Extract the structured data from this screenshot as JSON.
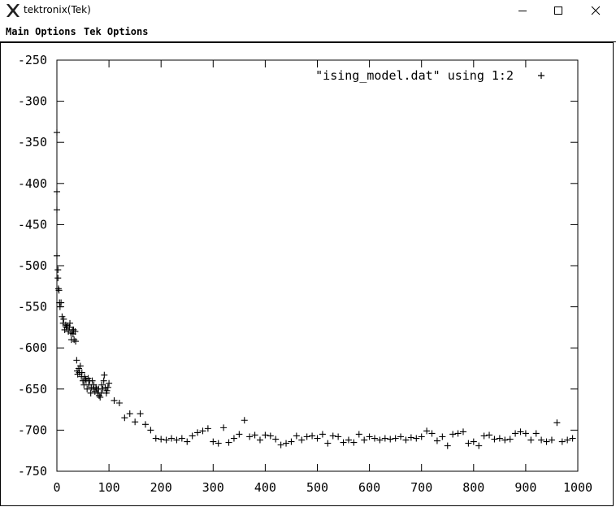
{
  "window": {
    "title": "tektronix(Tek)",
    "icon": "x-logo-icon",
    "controls": [
      "minimize-icon",
      "maximize-icon",
      "close-icon"
    ]
  },
  "menubar": {
    "main_options": "Main Options",
    "tek_options": "Tek Options"
  },
  "chart_data": {
    "type": "scatter",
    "marker": "+",
    "color": "#000000",
    "series": [
      {
        "name": "\"ising_model.dat\" using 1:2",
        "points": [
          [
            0,
            -338
          ],
          [
            0,
            -410
          ],
          [
            0,
            -432
          ],
          [
            0,
            -488
          ],
          [
            2,
            -505
          ],
          [
            2,
            -515
          ],
          [
            3,
            -528
          ],
          [
            4,
            -530
          ],
          [
            5,
            -545
          ],
          [
            6,
            -550
          ],
          [
            8,
            -545
          ],
          [
            10,
            -562
          ],
          [
            12,
            -570
          ],
          [
            13,
            -565
          ],
          [
            15,
            -578
          ],
          [
            17,
            -572
          ],
          [
            18,
            -575
          ],
          [
            20,
            -573
          ],
          [
            22,
            -580
          ],
          [
            24,
            -575
          ],
          [
            25,
            -570
          ],
          [
            27,
            -582
          ],
          [
            28,
            -590
          ],
          [
            30,
            -578
          ],
          [
            31,
            -583
          ],
          [
            32,
            -578
          ],
          [
            33,
            -590
          ],
          [
            35,
            -580
          ],
          [
            36,
            -592
          ],
          [
            38,
            -615
          ],
          [
            39,
            -628
          ],
          [
            40,
            -632
          ],
          [
            42,
            -625
          ],
          [
            43,
            -630
          ],
          [
            45,
            -622
          ],
          [
            47,
            -635
          ],
          [
            48,
            -630
          ],
          [
            50,
            -640
          ],
          [
            52,
            -645
          ],
          [
            53,
            -635
          ],
          [
            55,
            -638
          ],
          [
            56,
            -640
          ],
          [
            58,
            -650
          ],
          [
            60,
            -637
          ],
          [
            61,
            -645
          ],
          [
            63,
            -640
          ],
          [
            65,
            -655
          ],
          [
            66,
            -648
          ],
          [
            68,
            -640
          ],
          [
            70,
            -650
          ],
          [
            71,
            -645
          ],
          [
            73,
            -653
          ],
          [
            75,
            -648
          ],
          [
            76,
            -650
          ],
          [
            78,
            -655
          ],
          [
            80,
            -650
          ],
          [
            81,
            -658
          ],
          [
            83,
            -660
          ],
          [
            85,
            -655
          ],
          [
            86,
            -645
          ],
          [
            88,
            -650
          ],
          [
            90,
            -640
          ],
          [
            91,
            -633
          ],
          [
            93,
            -648
          ],
          [
            95,
            -655
          ],
          [
            96,
            -652
          ],
          [
            98,
            -648
          ],
          [
            100,
            -643
          ],
          [
            110,
            -664
          ],
          [
            120,
            -667
          ],
          [
            130,
            -685
          ],
          [
            140,
            -680
          ],
          [
            150,
            -690
          ],
          [
            160,
            -680
          ],
          [
            170,
            -693
          ],
          [
            180,
            -700
          ],
          [
            190,
            -710
          ],
          [
            200,
            -711
          ],
          [
            210,
            -712
          ],
          [
            220,
            -710
          ],
          [
            230,
            -712
          ],
          [
            240,
            -710
          ],
          [
            250,
            -714
          ],
          [
            260,
            -707
          ],
          [
            270,
            -703
          ],
          [
            280,
            -701
          ],
          [
            290,
            -698
          ],
          [
            300,
            -714
          ],
          [
            310,
            -716
          ],
          [
            320,
            -697
          ],
          [
            330,
            -715
          ],
          [
            340,
            -710
          ],
          [
            350,
            -705
          ],
          [
            360,
            -688
          ],
          [
            370,
            -708
          ],
          [
            380,
            -706
          ],
          [
            390,
            -712
          ],
          [
            400,
            -706
          ],
          [
            410,
            -707
          ],
          [
            420,
            -711
          ],
          [
            430,
            -718
          ],
          [
            440,
            -716
          ],
          [
            450,
            -714
          ],
          [
            460,
            -707
          ],
          [
            470,
            -712
          ],
          [
            480,
            -708
          ],
          [
            490,
            -707
          ],
          [
            500,
            -710
          ],
          [
            510,
            -705
          ],
          [
            520,
            -716
          ],
          [
            530,
            -707
          ],
          [
            540,
            -708
          ],
          [
            550,
            -715
          ],
          [
            560,
            -712
          ],
          [
            570,
            -715
          ],
          [
            580,
            -705
          ],
          [
            590,
            -712
          ],
          [
            600,
            -708
          ],
          [
            610,
            -710
          ],
          [
            620,
            -712
          ],
          [
            630,
            -710
          ],
          [
            640,
            -711
          ],
          [
            650,
            -710
          ],
          [
            660,
            -708
          ],
          [
            670,
            -712
          ],
          [
            680,
            -709
          ],
          [
            690,
            -710
          ],
          [
            700,
            -708
          ],
          [
            710,
            -701
          ],
          [
            720,
            -704
          ],
          [
            730,
            -713
          ],
          [
            740,
            -708
          ],
          [
            750,
            -719
          ],
          [
            760,
            -705
          ],
          [
            770,
            -704
          ],
          [
            780,
            -702
          ],
          [
            790,
            -716
          ],
          [
            800,
            -714
          ],
          [
            810,
            -719
          ],
          [
            820,
            -707
          ],
          [
            830,
            -706
          ],
          [
            840,
            -711
          ],
          [
            850,
            -710
          ],
          [
            860,
            -712
          ],
          [
            870,
            -711
          ],
          [
            880,
            -704
          ],
          [
            890,
            -702
          ],
          [
            900,
            -704
          ],
          [
            910,
            -712
          ],
          [
            920,
            -704
          ],
          [
            930,
            -712
          ],
          [
            940,
            -714
          ],
          [
            950,
            -712
          ],
          [
            960,
            -691
          ],
          [
            970,
            -714
          ],
          [
            980,
            -712
          ],
          [
            990,
            -710
          ]
        ]
      }
    ],
    "xlim": [
      0,
      1000
    ],
    "ylim": [
      -750,
      -250
    ],
    "x_ticks": [
      0,
      100,
      200,
      300,
      400,
      500,
      600,
      700,
      800,
      900,
      1000
    ],
    "y_ticks": [
      -250,
      -300,
      -350,
      -400,
      -450,
      -500,
      -550,
      -600,
      -650,
      -700,
      -750
    ],
    "x_tick_labels": [
      "0",
      "100",
      "200",
      "300",
      "400",
      "500",
      "600",
      "700",
      "800",
      "900",
      "1000"
    ],
    "y_tick_labels": [
      "-250",
      "-300",
      "-350",
      "-400",
      "-450",
      "-500",
      "-550",
      "-600",
      "-650",
      "-700",
      "-750"
    ],
    "legend_position": "top-right",
    "grid": false
  }
}
